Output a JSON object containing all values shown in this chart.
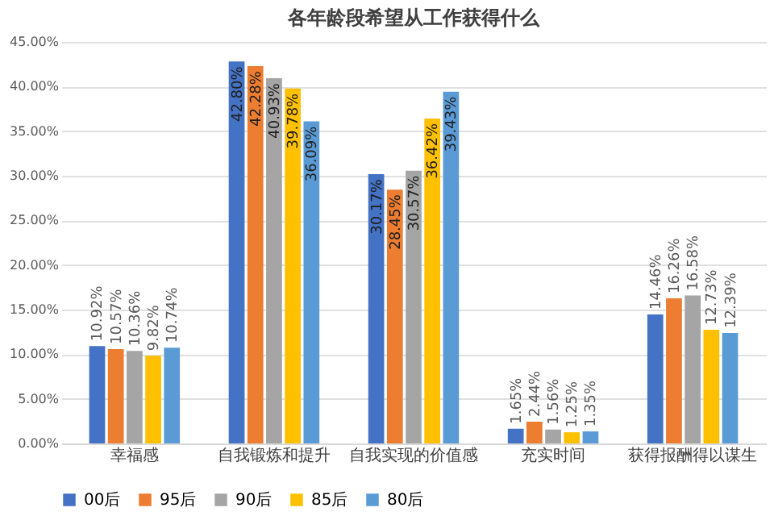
{
  "chart_data": {
    "type": "bar",
    "title": "各年龄段希望从工作获得什么",
    "categories": [
      "幸福感",
      "自我锻炼和提升",
      "自我实现的价值感",
      "充实时间",
      "获得报酬得以谋生"
    ],
    "series": [
      {
        "name": "00后",
        "color": "#4472c4",
        "values": [
          10.92,
          42.8,
          30.17,
          1.65,
          14.46
        ],
        "value_labels": [
          "10.92%",
          "42.80%",
          "30.17%",
          "1.65%",
          "14.46%"
        ]
      },
      {
        "name": "95后",
        "color": "#ed7d31",
        "values": [
          10.57,
          42.28,
          28.45,
          2.44,
          16.26
        ],
        "value_labels": [
          "10.57%",
          "42.28%",
          "28.45%",
          "2.44%",
          "16.26%"
        ]
      },
      {
        "name": "90后",
        "color": "#a5a5a5",
        "values": [
          10.36,
          40.93,
          30.57,
          1.56,
          16.58
        ],
        "value_labels": [
          "10.36%",
          "40.93%",
          "30.57%",
          "1.56%",
          "16.58%"
        ]
      },
      {
        "name": "85后",
        "color": "#ffc000",
        "values": [
          9.82,
          39.78,
          36.42,
          1.25,
          12.73
        ],
        "value_labels": [
          "9.82%",
          "39.78%",
          "36.42%",
          "1.25%",
          "12.73%"
        ]
      },
      {
        "name": "80后",
        "color": "#5b9bd5",
        "values": [
          10.74,
          36.09,
          39.43,
          1.35,
          12.39
        ],
        "value_labels": [
          "10.74%",
          "36.09%",
          "39.43%",
          "1.35%",
          "12.39%"
        ]
      }
    ],
    "ylim": [
      0,
      45
    ],
    "yticks": [
      {
        "value": 0,
        "label": "0.00%"
      },
      {
        "value": 5,
        "label": "5.00%"
      },
      {
        "value": 10,
        "label": "10.00%"
      },
      {
        "value": 15,
        "label": "15.00%"
      },
      {
        "value": 20,
        "label": "20.00%"
      },
      {
        "value": 25,
        "label": "25.00%"
      },
      {
        "value": 30,
        "label": "30.00%"
      },
      {
        "value": 35,
        "label": "35.00%"
      },
      {
        "value": 40,
        "label": "40.00%"
      },
      {
        "value": 45,
        "label": "45.00%"
      }
    ],
    "grid": "y",
    "legend": "bottom"
  }
}
